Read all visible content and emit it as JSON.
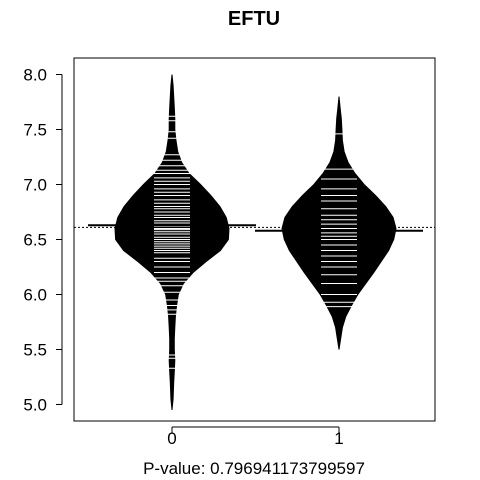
{
  "chart_data": {
    "type": "beanplot",
    "title": "EFTU",
    "xlabel": "P-value: 0.796941173799597",
    "ylabel": "",
    "ylim": [
      4.85,
      8.15
    ],
    "yticks": [
      5.0,
      5.5,
      6.0,
      6.5,
      7.0,
      7.5,
      8.0
    ],
    "ytick_labels": [
      "5.0",
      "5.5",
      "6.0",
      "6.5",
      "7.0",
      "7.5",
      "8.0"
    ],
    "categories": [
      "0",
      "1"
    ],
    "overall_mean": 6.61,
    "colors": {
      "bean_fill": "#000000",
      "observation_line": "#ffffff",
      "frame": "#000000"
    },
    "beans": [
      {
        "category": "0",
        "mean": 6.63,
        "density": [
          [
            4.95,
            0.0
          ],
          [
            5.05,
            0.02
          ],
          [
            5.2,
            0.03
          ],
          [
            5.3,
            0.04
          ],
          [
            5.4,
            0.05
          ],
          [
            5.5,
            0.04
          ],
          [
            5.6,
            0.04
          ],
          [
            5.7,
            0.05
          ],
          [
            5.8,
            0.06
          ],
          [
            5.9,
            0.08
          ],
          [
            6.0,
            0.11
          ],
          [
            6.1,
            0.2
          ],
          [
            6.2,
            0.37
          ],
          [
            6.3,
            0.6
          ],
          [
            6.4,
            0.85
          ],
          [
            6.5,
            0.99
          ],
          [
            6.6,
            1.0
          ],
          [
            6.7,
            0.95
          ],
          [
            6.8,
            0.84
          ],
          [
            6.9,
            0.68
          ],
          [
            7.0,
            0.5
          ],
          [
            7.1,
            0.3
          ],
          [
            7.2,
            0.17
          ],
          [
            7.3,
            0.1
          ],
          [
            7.4,
            0.07
          ],
          [
            7.5,
            0.05
          ],
          [
            7.6,
            0.05
          ],
          [
            7.7,
            0.04
          ],
          [
            7.8,
            0.03
          ],
          [
            7.9,
            0.02
          ],
          [
            8.0,
            0.0
          ]
        ],
        "observations": [
          5.33,
          5.42,
          5.45,
          5.82,
          5.86,
          5.9,
          5.95,
          6.02,
          6.08,
          6.12,
          6.15,
          6.2,
          6.25,
          6.3,
          6.33,
          6.38,
          6.4,
          6.42,
          6.44,
          6.46,
          6.48,
          6.5,
          6.52,
          6.55,
          6.57,
          6.59,
          6.6,
          6.62,
          6.65,
          6.67,
          6.7,
          6.72,
          6.75,
          6.78,
          6.8,
          6.83,
          6.86,
          6.9,
          6.93,
          6.96,
          7.0,
          7.03,
          7.06,
          7.1,
          7.13,
          7.17,
          7.22,
          7.27,
          7.42,
          7.48,
          7.58,
          7.62
        ]
      },
      {
        "category": "1",
        "mean": 6.58,
        "density": [
          [
            5.5,
            0.0
          ],
          [
            5.6,
            0.03
          ],
          [
            5.7,
            0.06
          ],
          [
            5.8,
            0.12
          ],
          [
            5.9,
            0.22
          ],
          [
            6.0,
            0.33
          ],
          [
            6.1,
            0.47
          ],
          [
            6.2,
            0.61
          ],
          [
            6.3,
            0.74
          ],
          [
            6.4,
            0.87
          ],
          [
            6.5,
            0.96
          ],
          [
            6.6,
            1.0
          ],
          [
            6.7,
            0.95
          ],
          [
            6.8,
            0.82
          ],
          [
            6.9,
            0.64
          ],
          [
            7.0,
            0.44
          ],
          [
            7.1,
            0.28
          ],
          [
            7.2,
            0.16
          ],
          [
            7.3,
            0.09
          ],
          [
            7.4,
            0.06
          ],
          [
            7.5,
            0.05
          ],
          [
            7.6,
            0.04
          ],
          [
            7.7,
            0.02
          ],
          [
            7.8,
            0.0
          ]
        ],
        "observations": [
          5.89,
          5.93,
          6.0,
          6.1,
          6.18,
          6.25,
          6.3,
          6.35,
          6.4,
          6.45,
          6.5,
          6.53,
          6.56,
          6.6,
          6.64,
          6.68,
          6.72,
          6.78,
          6.85,
          6.9,
          6.96,
          7.05,
          7.14,
          7.46
        ]
      }
    ]
  }
}
